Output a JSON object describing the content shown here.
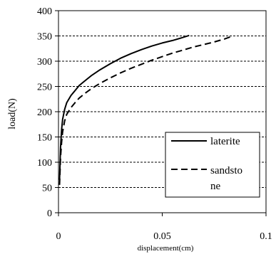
{
  "chart_data": {
    "type": "line",
    "xlabel": "displacement(cm)",
    "ylabel": "load(N)",
    "xlim": [
      0,
      0.1
    ],
    "ylim": [
      0,
      400
    ],
    "x_ticks": [
      "0",
      "0.05",
      "0.1"
    ],
    "y_ticks": [
      "0",
      "50",
      "100",
      "150",
      "200",
      "250",
      "300",
      "350",
      "400"
    ],
    "grid": "horizontal dashed",
    "legend_position": "bottom-right",
    "series": [
      {
        "name": "laterite",
        "style": "solid",
        "color": "#000000",
        "x": [
          0.0005,
          0.001,
          0.0015,
          0.002,
          0.003,
          0.004,
          0.006,
          0.008,
          0.01,
          0.013,
          0.016,
          0.02,
          0.025,
          0.03,
          0.035,
          0.04,
          0.045,
          0.05,
          0.055,
          0.06,
          0.063
        ],
        "y": [
          65,
          130,
          165,
          185,
          205,
          218,
          232,
          242,
          252,
          262,
          272,
          283,
          295,
          306,
          315,
          323,
          330,
          336,
          341,
          347,
          351
        ]
      },
      {
        "name_lines": [
          "sandsto",
          "ne"
        ],
        "style": "dashed",
        "color": "#000000",
        "x": [
          0.0005,
          0.001,
          0.0015,
          0.002,
          0.003,
          0.004,
          0.006,
          0.008,
          0.01,
          0.013,
          0.016,
          0.02,
          0.025,
          0.03,
          0.035,
          0.04,
          0.045,
          0.05,
          0.055,
          0.06,
          0.065,
          0.07,
          0.075,
          0.08,
          0.084
        ],
        "y": [
          55,
          110,
          140,
          160,
          182,
          195,
          208,
          218,
          227,
          237,
          246,
          256,
          267,
          277,
          286,
          294,
          302,
          309,
          316,
          322,
          328,
          333,
          338,
          344,
          350
        ]
      }
    ]
  }
}
